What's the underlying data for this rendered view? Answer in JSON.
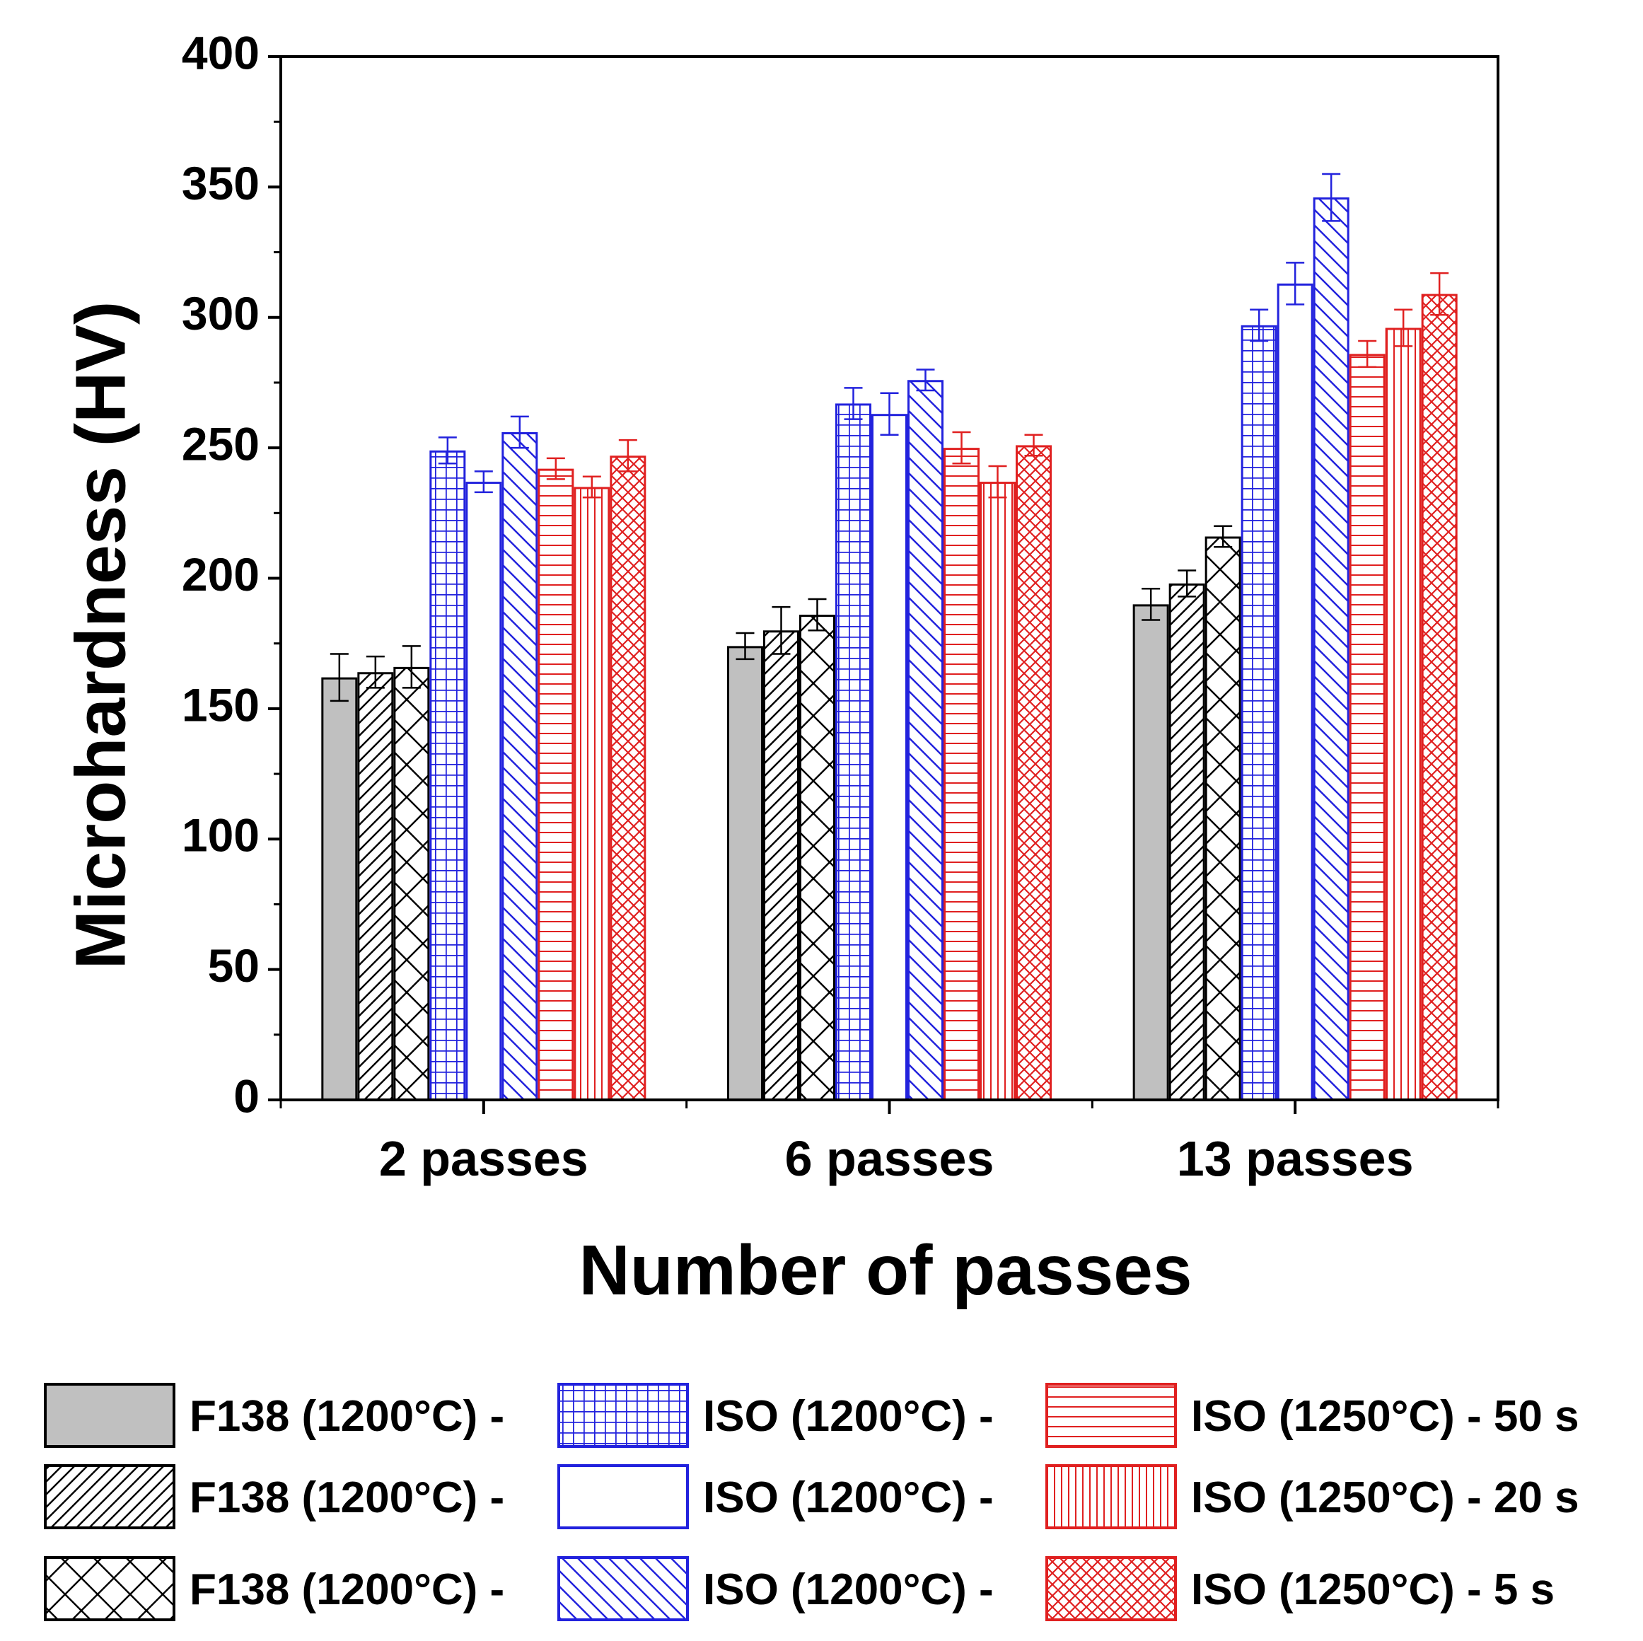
{
  "chart_data": {
    "type": "bar",
    "title": "",
    "xlabel": "Number of passes",
    "ylabel": "Microhardness (HV)",
    "ylim": [
      0,
      400
    ],
    "yticks": [
      0,
      50,
      100,
      150,
      200,
      250,
      300,
      350,
      400
    ],
    "categories": [
      "2 passes",
      "6 passes",
      "13 passes"
    ],
    "series": [
      {
        "name": "F138 (1200°C) -",
        "color": "#000000",
        "pattern": "solid-gray",
        "values": [
          162,
          174,
          190
        ],
        "errors": [
          9,
          5,
          6
        ]
      },
      {
        "name": "F138 (1200°C) -",
        "color": "#000000",
        "pattern": "diag-right",
        "values": [
          164,
          180,
          198
        ],
        "errors": [
          6,
          9,
          5
        ]
      },
      {
        "name": "F138 (1200°C) -",
        "color": "#000000",
        "pattern": "cross-diag",
        "values": [
          166,
          186,
          216
        ],
        "errors": [
          8,
          6,
          4
        ]
      },
      {
        "name": "ISO (1200°C) -",
        "color": "#2222dd",
        "pattern": "grid",
        "values": [
          249,
          267,
          297
        ],
        "errors": [
          5,
          6,
          6
        ]
      },
      {
        "name": "ISO (1200°C) -",
        "color": "#2222dd",
        "pattern": "none",
        "values": [
          237,
          263,
          313
        ],
        "errors": [
          4,
          8,
          8
        ]
      },
      {
        "name": "ISO (1200°C) -",
        "color": "#2222dd",
        "pattern": "diag-left",
        "values": [
          256,
          276,
          346
        ],
        "errors": [
          6,
          4,
          9
        ]
      },
      {
        "name": "ISO (1250°C) - 50 s",
        "color": "#e02020",
        "pattern": "horizontal",
        "values": [
          242,
          250,
          286
        ],
        "errors": [
          4,
          6,
          5
        ]
      },
      {
        "name": "ISO (1250°C) - 20 s",
        "color": "#e02020",
        "pattern": "vertical",
        "values": [
          235,
          237,
          296
        ],
        "errors": [
          4,
          6,
          7
        ]
      },
      {
        "name": "ISO (1250°C) - 5 s",
        "color": "#e02020",
        "pattern": "cross-diag-fine",
        "values": [
          247,
          251,
          309
        ],
        "errors": [
          6,
          4,
          8
        ]
      }
    ],
    "legend": "below"
  }
}
